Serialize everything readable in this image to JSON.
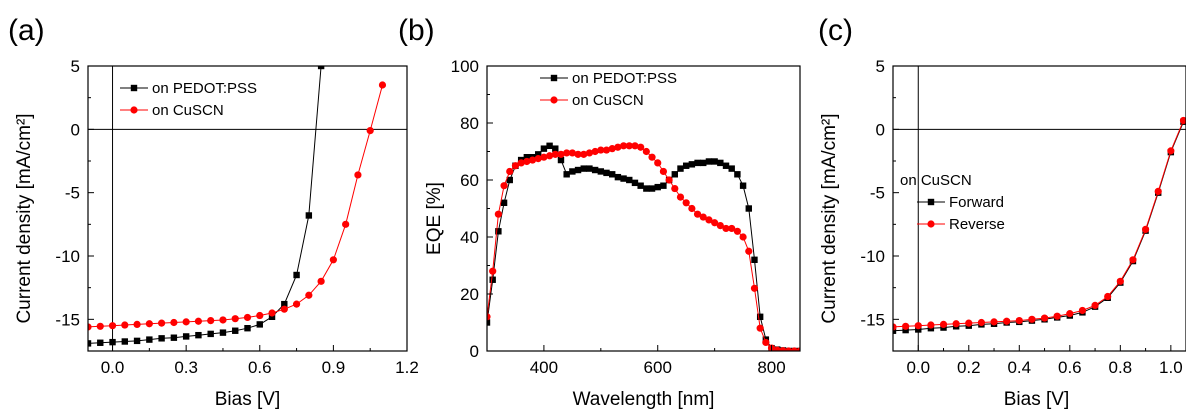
{
  "colors": {
    "pedot": "#000000",
    "cuscn": "#ff0000",
    "forward": "#000000",
    "reverse": "#ff0000"
  },
  "chart_data": [
    {
      "panel": "(a)",
      "type": "line",
      "xlabel": "Bias [V]",
      "ylabel": "Current density [mA/cm²]",
      "xlim": [
        -0.1,
        1.2
      ],
      "ylim": [
        -17.5,
        5
      ],
      "xticks": [
        0.0,
        0.3,
        0.6,
        0.9,
        1.2
      ],
      "xtick_labels": [
        "0.0",
        "0.3",
        "0.6",
        "0.9",
        "1.2"
      ],
      "yticks": [
        -15,
        -10,
        -5,
        0,
        5
      ],
      "ytick_labels": [
        "-15",
        "-10",
        "-5",
        "0",
        "5"
      ],
      "zero_lines": true,
      "legend_placement": "top-left",
      "series": [
        {
          "name": "on PEDOT:PSS",
          "color": "pedot",
          "marker": "square",
          "x": [
            -0.1,
            -0.05,
            0.0,
            0.05,
            0.1,
            0.15,
            0.2,
            0.25,
            0.3,
            0.35,
            0.4,
            0.45,
            0.5,
            0.55,
            0.6,
            0.65,
            0.7,
            0.75,
            0.8,
            0.85
          ],
          "y": [
            -16.9,
            -16.85,
            -16.8,
            -16.75,
            -16.7,
            -16.6,
            -16.5,
            -16.45,
            -16.35,
            -16.25,
            -16.15,
            -16.05,
            -15.9,
            -15.7,
            -15.4,
            -14.8,
            -13.8,
            -11.5,
            -6.8,
            5
          ]
        },
        {
          "name": "on CuSCN",
          "color": "cuscn",
          "marker": "circle",
          "x": [
            -0.1,
            -0.05,
            0.0,
            0.05,
            0.1,
            0.15,
            0.2,
            0.25,
            0.3,
            0.35,
            0.4,
            0.45,
            0.5,
            0.55,
            0.6,
            0.65,
            0.7,
            0.75,
            0.8,
            0.85,
            0.9,
            0.95,
            1.0,
            1.05,
            1.1
          ],
          "y": [
            -15.6,
            -15.55,
            -15.5,
            -15.45,
            -15.4,
            -15.35,
            -15.3,
            -15.25,
            -15.2,
            -15.15,
            -15.1,
            -15.05,
            -14.95,
            -14.85,
            -14.7,
            -14.5,
            -14.2,
            -13.8,
            -13.1,
            -12.0,
            -10.3,
            -7.5,
            -3.6,
            -0.1,
            3.5
          ]
        }
      ]
    },
    {
      "panel": "(b)",
      "type": "line",
      "xlabel": "Wavelength [nm]",
      "ylabel": "EQE [%]",
      "xlim": [
        300,
        850
      ],
      "ylim": [
        0,
        100
      ],
      "xticks": [
        400,
        600,
        800
      ],
      "xtick_labels": [
        "400",
        "600",
        "800"
      ],
      "yticks": [
        0,
        20,
        40,
        60,
        80,
        100
      ],
      "ytick_labels": [
        "0",
        "20",
        "40",
        "60",
        "80",
        "100"
      ],
      "zero_lines": false,
      "legend_placement": "top-left",
      "series": [
        {
          "name": "on PEDOT:PSS",
          "color": "pedot",
          "marker": "square",
          "x": [
            300,
            310,
            320,
            330,
            340,
            350,
            360,
            370,
            380,
            390,
            400,
            410,
            420,
            430,
            440,
            450,
            460,
            470,
            480,
            490,
            500,
            510,
            520,
            530,
            540,
            550,
            560,
            570,
            580,
            590,
            600,
            610,
            620,
            630,
            640,
            650,
            660,
            670,
            680,
            690,
            700,
            710,
            720,
            730,
            740,
            750,
            760,
            770,
            780,
            790,
            800,
            810,
            820,
            830,
            840,
            850
          ],
          "y": [
            10,
            25,
            42,
            52,
            60,
            65,
            67,
            68,
            68,
            69,
            71,
            72,
            71,
            67,
            62,
            63,
            63.5,
            64,
            64,
            63.5,
            63,
            62.5,
            62,
            61,
            60.5,
            60,
            59,
            58,
            57,
            57,
            57.5,
            58,
            60,
            62,
            64,
            65,
            65.5,
            66,
            66,
            66.5,
            66.5,
            66,
            65,
            64,
            62,
            58,
            50,
            32,
            12,
            4,
            1,
            0.5,
            0.2,
            0,
            0,
            0
          ]
        },
        {
          "name": "on CuSCN",
          "color": "cuscn",
          "marker": "circle",
          "x": [
            300,
            310,
            320,
            330,
            340,
            350,
            360,
            370,
            380,
            390,
            400,
            410,
            420,
            430,
            440,
            450,
            460,
            470,
            480,
            490,
            500,
            510,
            520,
            530,
            540,
            550,
            560,
            570,
            580,
            590,
            600,
            610,
            620,
            630,
            640,
            650,
            660,
            670,
            680,
            690,
            700,
            710,
            720,
            730,
            740,
            750,
            760,
            770,
            780,
            790,
            800,
            810,
            820,
            830,
            840,
            850
          ],
          "y": [
            12,
            28,
            48,
            58,
            63,
            65,
            66,
            66.5,
            67,
            67.5,
            68,
            68.5,
            69,
            69,
            69.5,
            69.5,
            69,
            69,
            69.5,
            70,
            70.5,
            70.5,
            71,
            71.5,
            72,
            72,
            72,
            71.5,
            70,
            68,
            66,
            63,
            60,
            57,
            54,
            52,
            50,
            48,
            47,
            46,
            45,
            44,
            43,
            43,
            42,
            40,
            35,
            22,
            8,
            3,
            1,
            0.3,
            0.1,
            0,
            0,
            0
          ]
        }
      ]
    },
    {
      "panel": "(c)",
      "type": "line",
      "xlabel": "Bias [V]",
      "ylabel": "Current density [mA/cm²]",
      "xlim": [
        -0.1,
        1.06
      ],
      "ylim": [
        -17.5,
        5
      ],
      "xticks": [
        0.0,
        0.2,
        0.4,
        0.6,
        0.8,
        1.0
      ],
      "xtick_labels": [
        "0.0",
        "0.2",
        "0.4",
        "0.6",
        "0.8",
        "1.0"
      ],
      "yticks": [
        -15,
        -10,
        -5,
        0,
        5
      ],
      "ytick_labels": [
        "-15",
        "-10",
        "-5",
        "0",
        "5"
      ],
      "zero_lines": true,
      "legend_title": "on CuSCN",
      "legend_placement": "middle-left",
      "series": [
        {
          "name": "Forward",
          "color": "forward",
          "marker": "square",
          "x": [
            -0.1,
            -0.05,
            0.0,
            0.05,
            0.1,
            0.15,
            0.2,
            0.25,
            0.3,
            0.35,
            0.4,
            0.45,
            0.5,
            0.55,
            0.6,
            0.65,
            0.7,
            0.75,
            0.8,
            0.85,
            0.9,
            0.95,
            1.0,
            1.05
          ],
          "y": [
            -15.9,
            -15.85,
            -15.8,
            -15.7,
            -15.65,
            -15.55,
            -15.5,
            -15.4,
            -15.35,
            -15.25,
            -15.2,
            -15.1,
            -15.0,
            -14.85,
            -14.7,
            -14.45,
            -14.0,
            -13.3,
            -12.1,
            -10.4,
            -8.0,
            -5.0,
            -1.8,
            0.6
          ]
        },
        {
          "name": "Reverse",
          "color": "reverse",
          "marker": "circle",
          "x": [
            -0.1,
            -0.05,
            0.0,
            0.05,
            0.1,
            0.15,
            0.2,
            0.25,
            0.3,
            0.35,
            0.4,
            0.45,
            0.5,
            0.55,
            0.6,
            0.65,
            0.7,
            0.75,
            0.8,
            0.85,
            0.9,
            0.95,
            1.0,
            1.05
          ],
          "y": [
            -15.6,
            -15.55,
            -15.5,
            -15.45,
            -15.4,
            -15.35,
            -15.3,
            -15.25,
            -15.2,
            -15.15,
            -15.1,
            -15.0,
            -14.9,
            -14.75,
            -14.55,
            -14.3,
            -13.9,
            -13.2,
            -12.0,
            -10.3,
            -7.9,
            -4.9,
            -1.7,
            0.7
          ]
        }
      ]
    }
  ]
}
